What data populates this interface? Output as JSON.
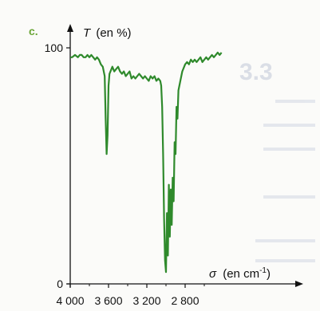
{
  "chart_data": {
    "type": "line",
    "panel_label": "c.",
    "ylabel_symbol": "T",
    "ylabel_unit": "(en %)",
    "xlabel_symbol": "σ",
    "xlabel_unit": "(en cm",
    "xlabel_exp": "-1",
    "xlabel_close": ")",
    "x_reversed": true,
    "xlim": [
      4000,
      2400
    ],
    "ylim": [
      0,
      100
    ],
    "x_tick_labels": [
      "4 000",
      "3 600",
      "3 200",
      "2 800"
    ],
    "y_tick_labels": [
      "0",
      "100"
    ],
    "line_color": "#2f8a2c",
    "series": [
      {
        "x": [
          4000,
          3980,
          3950,
          3920,
          3900,
          3880,
          3860,
          3840,
          3820,
          3800,
          3780,
          3760,
          3740,
          3720,
          3700,
          3680,
          3660,
          3640,
          3630,
          3620,
          3610,
          3600,
          3590,
          3580,
          3560,
          3540,
          3520,
          3500,
          3480,
          3460,
          3440,
          3420,
          3400,
          3380,
          3360,
          3340,
          3320,
          3300,
          3280,
          3260,
          3240,
          3220,
          3200,
          3180,
          3160,
          3140,
          3120,
          3100,
          3080,
          3060,
          3050,
          3040,
          3030,
          3020,
          3010,
          3000,
          2990,
          2980,
          2970,
          2960,
          2950,
          2940,
          2930,
          2920,
          2910,
          2900,
          2890,
          2880,
          2870,
          2860,
          2850,
          2840,
          2830,
          2820,
          2810,
          2800,
          2780,
          2760,
          2740,
          2720,
          2700,
          2680,
          2660,
          2640,
          2620,
          2600,
          2580,
          2560,
          2540,
          2520,
          2500,
          2480,
          2460,
          2440,
          2420
        ],
        "y": [
          96,
          96,
          97,
          96,
          97,
          97,
          96,
          96,
          97,
          96,
          97,
          96,
          95,
          96,
          95,
          93,
          92,
          88,
          70,
          55,
          63,
          84,
          89,
          90,
          92,
          90,
          91,
          92,
          90,
          89,
          90,
          88,
          89,
          90,
          87,
          88,
          87,
          88,
          89,
          88,
          87,
          88,
          87,
          86,
          88,
          87,
          88,
          86,
          87,
          86,
          84,
          75,
          55,
          28,
          10,
          5,
          30,
          12,
          42,
          20,
          40,
          25,
          45,
          35,
          60,
          55,
          75,
          70,
          82,
          84,
          86,
          88,
          90,
          91,
          92,
          93,
          94,
          93,
          95,
          94,
          95,
          94,
          95,
          96,
          94,
          95,
          96,
          95,
          96,
          97,
          96,
          97,
          98,
          97,
          98
        ]
      }
    ]
  }
}
